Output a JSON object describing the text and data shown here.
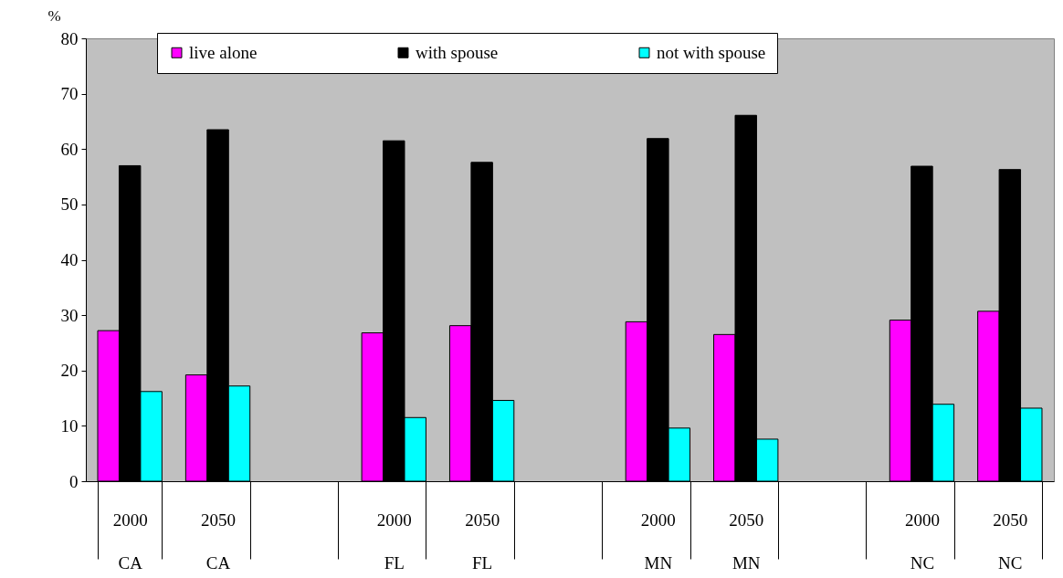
{
  "chart_data": {
    "type": "bar",
    "ylabel": "%",
    "categories": [
      "2000\nCA",
      "2050\nCA",
      null,
      "2000\nFL",
      "2050\nFL",
      null,
      "2000\nMN",
      "2050\nMN",
      null,
      "2000\nNC",
      "2050\nNC"
    ],
    "series": [
      {
        "name": "live alone",
        "color": "#ff00ff",
        "values": [
          27.2,
          19.2,
          null,
          26.8,
          28.1,
          null,
          28.8,
          26.5,
          null,
          29.1,
          30.7
        ]
      },
      {
        "name": "with spouse",
        "color": "#000000",
        "values": [
          57,
          63.5,
          null,
          61.5,
          57.6,
          null,
          61.9,
          66.1,
          null,
          56.9,
          56.3
        ]
      },
      {
        "name": "not with spouse",
        "color": "#00ffff",
        "values": [
          16.2,
          17.2,
          null,
          11.5,
          14.6,
          null,
          9.6,
          7.6,
          null,
          13.9,
          13.2
        ]
      }
    ],
    "ylim": [
      0,
      80
    ],
    "yticks": [
      0,
      10,
      20,
      30,
      40,
      50,
      60,
      70,
      80
    ],
    "grid": false,
    "legend": "top"
  }
}
